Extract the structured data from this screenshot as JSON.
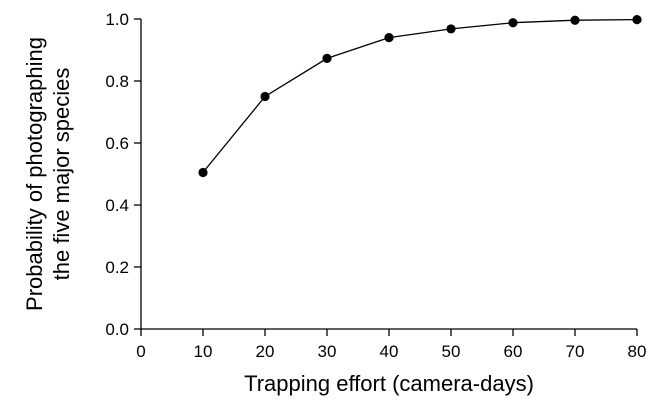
{
  "chart_data": {
    "type": "line",
    "title": "",
    "xlabel": "Trapping effort (camera-days)",
    "ylabel_lines": [
      "Probability of photographing",
      "the five major species"
    ],
    "xlim": [
      0,
      80
    ],
    "ylim": [
      0,
      1.0
    ],
    "x_ticks": [
      0,
      10,
      20,
      30,
      40,
      50,
      60,
      70,
      80
    ],
    "y_ticks": [
      0.0,
      0.2,
      0.4,
      0.6,
      0.8,
      1.0
    ],
    "y_tick_labels": [
      "0.0",
      "0.2",
      "0.4",
      "0.6",
      "0.8",
      "1.0"
    ],
    "grid": false,
    "legend": "none",
    "series": [
      {
        "x": [
          10,
          20,
          30,
          40,
          50,
          60,
          70,
          80
        ],
        "y": [
          0.505,
          0.75,
          0.873,
          0.94,
          0.968,
          0.988,
          0.996,
          0.998
        ],
        "color": "#000000",
        "marker": "filled-circle"
      }
    ]
  }
}
